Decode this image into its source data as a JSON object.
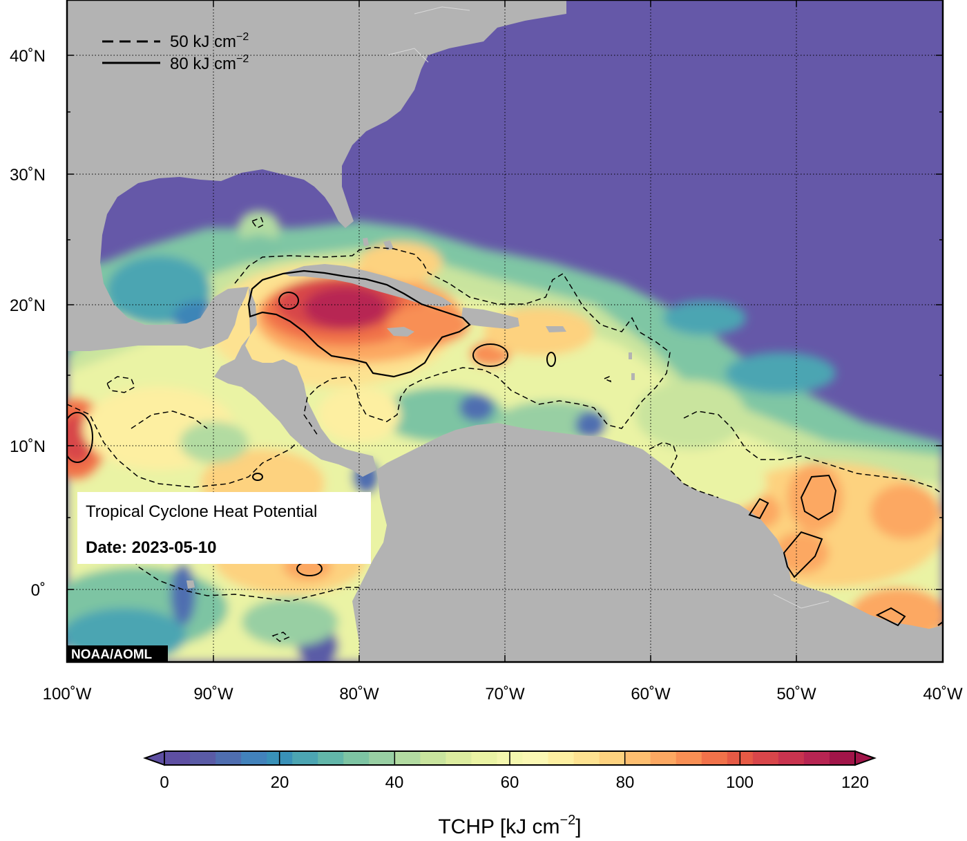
{
  "map": {
    "title_line": "Tropical Cyclone Heat Potential",
    "date_line": "Date: 2023-05-10",
    "credit": "NOAA/AOML",
    "lat_labels": [
      "40˚N",
      "30˚N",
      "20˚N",
      "10˚N",
      "0˚"
    ],
    "lon_labels": [
      "100˚W",
      "90˚W",
      "80˚W",
      "70˚W",
      "60˚W",
      "50˚W",
      "40˚W"
    ],
    "legend": {
      "dashed_label": "50 kJ cm",
      "solid_label": "80 kJ cm",
      "exponent": "−2"
    },
    "colors": {
      "land": "#b3b3b3",
      "cold_ocean": "#6558a8",
      "hot": "#d02c4a"
    }
  },
  "colorbar": {
    "ticks": [
      "0",
      "20",
      "40",
      "60",
      "80",
      "100",
      "120"
    ],
    "label": "TCHP [kJ cm",
    "label_exponent": "−2",
    "label_close": "]",
    "colors": [
      "#5e4fa2",
      "#5a5ba6",
      "#4f6eb0",
      "#4282bb",
      "#3991b8",
      "#4ca5b2",
      "#62b6a9",
      "#7dc4a3",
      "#98cfa3",
      "#b2dba1",
      "#c9e49e",
      "#dcec9f",
      "#eaf3a4",
      "#f4f7ae",
      "#fbf8b4",
      "#fdefa1",
      "#fde291",
      "#fdd27f",
      "#fdbe70",
      "#fca862",
      "#f88f54",
      "#f1724a",
      "#e65a45",
      "#d8464a",
      "#c9344f",
      "#b72552",
      "#a11549"
    ]
  }
}
